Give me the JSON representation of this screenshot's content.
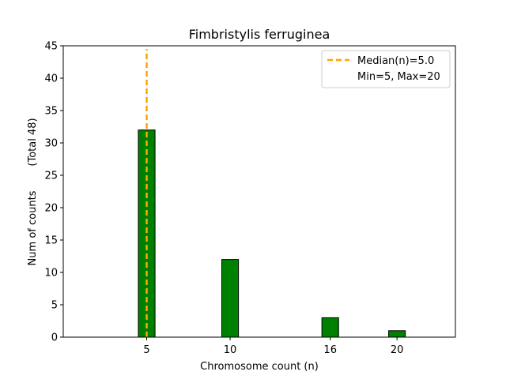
{
  "chart_data": {
    "type": "bar",
    "title": "Fimbristylis ferruginea",
    "xlabel": "Chromosome count (n)",
    "ylabel": "Num of counts",
    "ylabel_note": "(Total 48)",
    "categories": [
      5,
      10,
      16,
      20
    ],
    "values": [
      32,
      12,
      3,
      1
    ],
    "xlim": [
      0,
      23.5
    ],
    "ylim": [
      0,
      45
    ],
    "xticks": [
      5,
      10,
      16,
      20
    ],
    "yticks": [
      0,
      5,
      10,
      15,
      20,
      25,
      30,
      35,
      40,
      45
    ],
    "bar_width_units": 1,
    "bar_color": "#008000",
    "bar_edge_color": "#000000",
    "median": {
      "value": 5.0,
      "color": "#ffa500",
      "style": "dashed",
      "y_extent": [
        0,
        44.5
      ]
    },
    "grid": false,
    "legend": {
      "placement": "top-right",
      "entries": [
        "Median(n)=5.0",
        "Min=5, Max=20"
      ]
    }
  }
}
